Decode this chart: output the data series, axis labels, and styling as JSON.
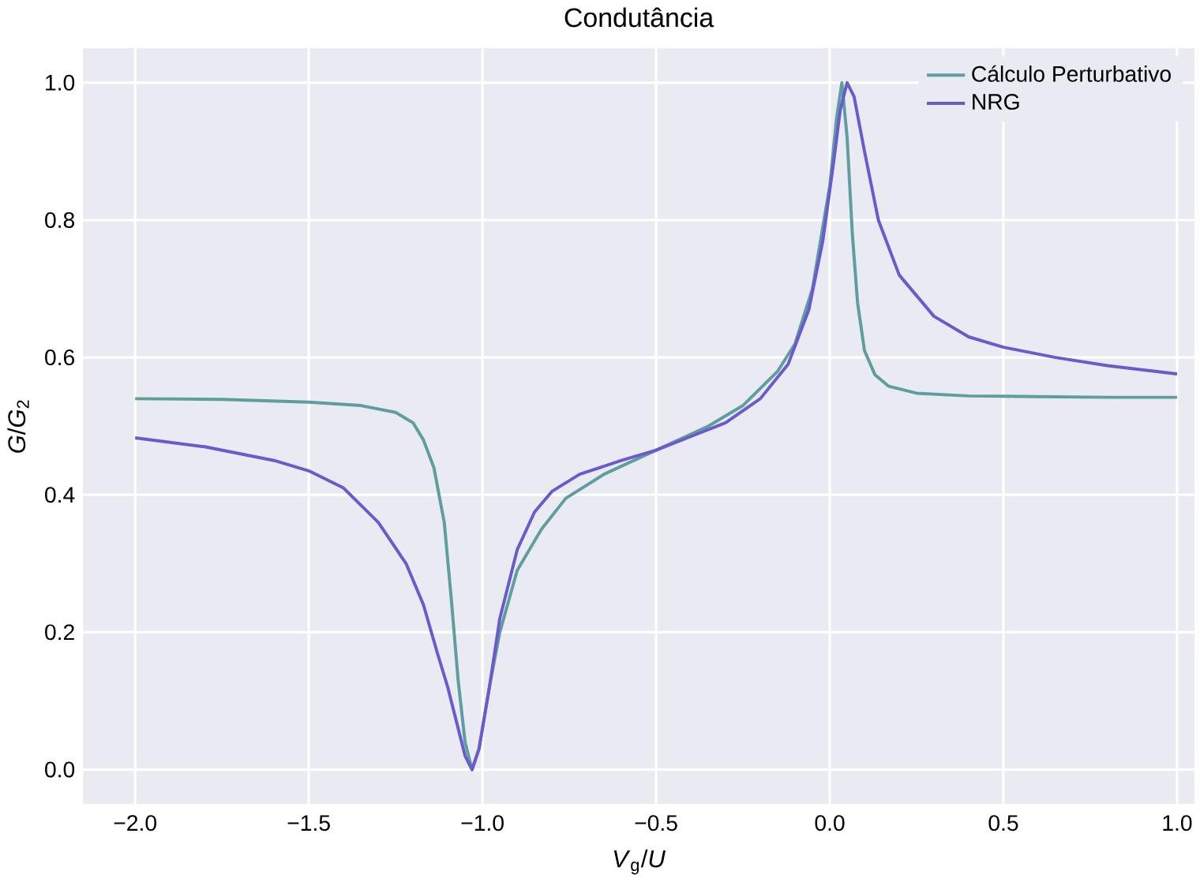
{
  "chart_data": {
    "type": "line",
    "title": "Condutância",
    "xlabel": "*V*$_{g}$/*U*",
    "ylabel": "*G*/*G*$_{2}$",
    "xlim": [
      -2.15,
      1.05
    ],
    "ylim": [
      -0.05,
      1.05
    ],
    "xticks": [
      {
        "value": -2,
        "label": "−2.0"
      },
      {
        "value": -1.5,
        "label": "−1.5"
      },
      {
        "value": -1,
        "label": "−1.0"
      },
      {
        "value": -0.5,
        "label": "−0.5"
      },
      {
        "value": 0,
        "label": "0.0"
      },
      0.5,
      {
        "value": 1,
        "label": "1.0"
      }
    ],
    "yticks": [
      {
        "value": 0,
        "label": "0.0"
      },
      0.2,
      0.4,
      0.6,
      0.8,
      {
        "value": 1,
        "label": "1.0"
      }
    ],
    "grid": true,
    "legend": "top right",
    "marker": "none",
    "line_style": "solid",
    "series": [
      {
        "name": "Cálculo Perturbativo",
        "color": "#5f9ea0",
        "x": [
          -2.0,
          -1.75,
          -1.5,
          -1.35,
          -1.25,
          -1.2,
          -1.17,
          -1.14,
          -1.11,
          -1.09,
          -1.07,
          -1.05,
          -1.03,
          -1.01,
          -0.98,
          -0.95,
          -0.9,
          -0.83,
          -0.76,
          -0.65,
          -0.5,
          -0.35,
          -0.25,
          -0.15,
          -0.1,
          -0.05,
          0.0,
          0.02,
          0.035,
          0.05,
          0.065,
          0.08,
          0.1,
          0.13,
          0.17,
          0.25,
          0.4,
          0.6,
          0.8,
          1.0
        ],
        "values": [
          0.54,
          0.539,
          0.535,
          0.53,
          0.52,
          0.505,
          0.48,
          0.44,
          0.36,
          0.25,
          0.13,
          0.04,
          0.0,
          0.03,
          0.12,
          0.2,
          0.29,
          0.35,
          0.395,
          0.43,
          0.465,
          0.5,
          0.53,
          0.58,
          0.62,
          0.7,
          0.85,
          0.95,
          1.0,
          0.92,
          0.78,
          0.68,
          0.61,
          0.575,
          0.558,
          0.548,
          0.544,
          0.543,
          0.542,
          0.542
        ]
      },
      {
        "name": "NRG",
        "color": "#6a5acd",
        "x": [
          -2.0,
          -1.8,
          -1.6,
          -1.5,
          -1.4,
          -1.3,
          -1.22,
          -1.17,
          -1.13,
          -1.1,
          -1.07,
          -1.05,
          -1.03,
          -1.01,
          -0.98,
          -0.95,
          -0.9,
          -0.85,
          -0.8,
          -0.72,
          -0.6,
          -0.5,
          -0.4,
          -0.3,
          -0.2,
          -0.12,
          -0.06,
          -0.02,
          0.01,
          0.03,
          0.05,
          0.07,
          0.1,
          0.14,
          0.2,
          0.3,
          0.4,
          0.5,
          0.65,
          0.8,
          1.0
        ],
        "values": [
          0.483,
          0.47,
          0.45,
          0.435,
          0.41,
          0.36,
          0.3,
          0.24,
          0.17,
          0.12,
          0.06,
          0.02,
          0.0,
          0.03,
          0.12,
          0.22,
          0.32,
          0.375,
          0.405,
          0.43,
          0.45,
          0.465,
          0.485,
          0.505,
          0.54,
          0.59,
          0.67,
          0.77,
          0.88,
          0.96,
          1.0,
          0.98,
          0.9,
          0.8,
          0.72,
          0.66,
          0.63,
          0.615,
          0.6,
          0.588,
          0.576
        ]
      }
    ]
  }
}
